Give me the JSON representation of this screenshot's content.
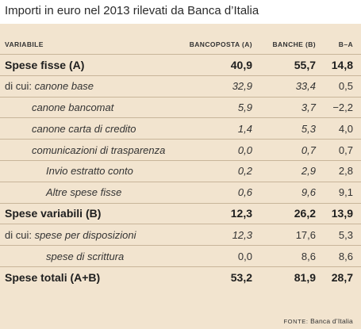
{
  "title": "Importi in euro nel 2013 rilevati da Banca d’Italia",
  "headers": {
    "label": "VARIABILE",
    "col1": "BANCOPOSTA (A)",
    "col2": "BANCHE (B)",
    "col3": "B–A"
  },
  "rows": [
    {
      "prefix": "",
      "label": "Spese fisse (A)",
      "a": "40,9",
      "b": "55,7",
      "diff": "14,8"
    },
    {
      "prefix": "di cui: ",
      "label": "canone base",
      "a": "32,9",
      "b": "33,4",
      "diff": "0,5"
    },
    {
      "prefix": "",
      "label": "canone bancomat",
      "a": "5,9",
      "b": "3,7",
      "diff": "−2,2"
    },
    {
      "prefix": "",
      "label": "canone carta di credito",
      "a": "1,4",
      "b": "5,3",
      "diff": "4,0"
    },
    {
      "prefix": "",
      "label": "comunicazioni di trasparenza",
      "a": "0,0",
      "b": "0,7",
      "diff": "0,7"
    },
    {
      "prefix": "",
      "label": "Invio estratto conto",
      "a": "0,2",
      "b": "2,9",
      "diff": "2,8"
    },
    {
      "prefix": "",
      "label": "Altre spese fisse",
      "a": "0,6",
      "b": "9,6",
      "diff": "9,1"
    },
    {
      "prefix": "",
      "label": "Spese variabili (B)",
      "a": "12,3",
      "b": "26,2",
      "diff": "13,9"
    },
    {
      "prefix": "di cui: ",
      "label": "spese per disposizioni",
      "a": "12,3",
      "b": "17,6",
      "diff": "5,3"
    },
    {
      "prefix": "",
      "label": "spese di scrittura",
      "a": "0,0",
      "b": "8,6",
      "diff": "8,6"
    },
    {
      "prefix": "",
      "label": "Spese totali (A+B)",
      "a": "53,2",
      "b": "81,9",
      "diff": "28,7"
    }
  ],
  "source": {
    "label": "FONTE:",
    "text": "Banca d’Italia"
  }
}
